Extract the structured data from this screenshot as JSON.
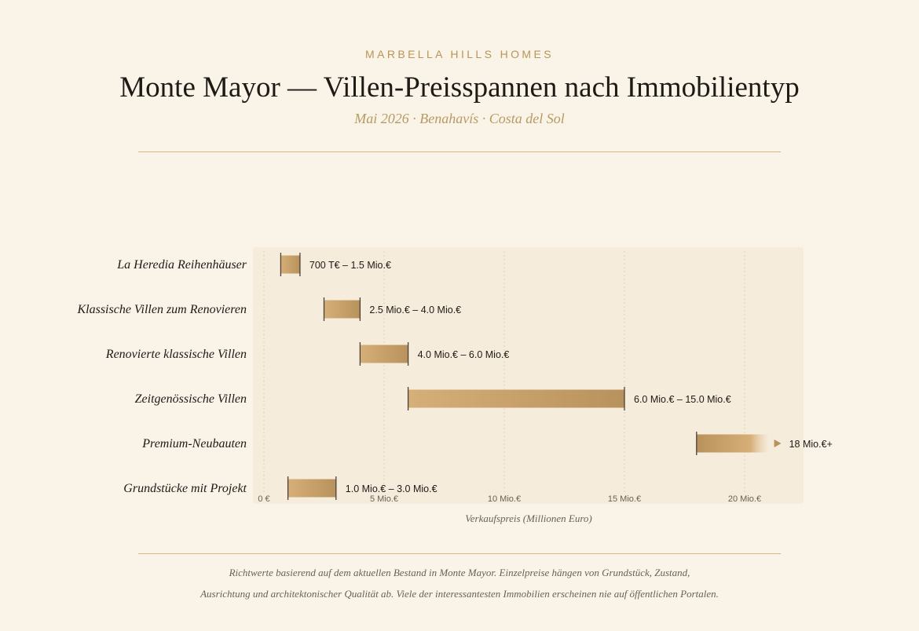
{
  "header": {
    "brand": "MARBELLA HILLS HOMES",
    "title": "Monte Mayor — Villen-Preisspannen nach Immobilientyp",
    "subtitle": "Mai 2026 · Benahavís · Costa del Sol"
  },
  "footer": {
    "line1": "Richtwerte basierend auf dem aktuellen Bestand in Monte Mayor. Einzelpreise hängen von Grundstück, Zustand,",
    "line2": "Ausrichtung und architektonischer Qualität ab. Viele der interessantesten Immobilien erscheinen nie auf öffentlichen Portalen."
  },
  "colors": {
    "background": "#f9f3e8",
    "plot_background": "#f6ecdc",
    "bar_start": "#d6ae78",
    "bar_end": "#b8925c",
    "accent": "#b89558",
    "text": "#1e1a16"
  },
  "chart_data": {
    "type": "range-bar",
    "orientation": "horizontal",
    "xlabel": "Verkaufspreis (Millionen Euro)",
    "ylabel": "",
    "xlim": [
      0,
      22
    ],
    "x_ticks": [
      {
        "value": 0,
        "label": "0 €"
      },
      {
        "value": 5,
        "label": "5 Mio.€"
      },
      {
        "value": 10,
        "label": "10 Mio.€"
      },
      {
        "value": 15,
        "label": "15 Mio.€"
      },
      {
        "value": 20,
        "label": "20 Mio.€"
      }
    ],
    "grid": "vertical dotted",
    "categories": [
      "La Heredia Reihenhäuser",
      "Klassische Villen zum Renovieren",
      "Renovierte klassische Villen",
      "Zeitgenössische Villen",
      "Premium-Neubauten",
      "Grundstücke mit Projekt"
    ],
    "ranges": [
      {
        "min": 0.7,
        "max": 1.5,
        "label": "700 T€ – 1.5 Mio.€",
        "open_ended": false
      },
      {
        "min": 2.5,
        "max": 4.0,
        "label": "2.5 Mio.€ – 4.0 Mio.€",
        "open_ended": false
      },
      {
        "min": 4.0,
        "max": 6.0,
        "label": "4.0 Mio.€ – 6.0 Mio.€",
        "open_ended": false
      },
      {
        "min": 6.0,
        "max": 15.0,
        "label": "6.0 Mio.€ – 15.0 Mio.€",
        "open_ended": false
      },
      {
        "min": 18.0,
        "max": 21.0,
        "label": "18 Mio.€+",
        "open_ended": true
      },
      {
        "min": 1.0,
        "max": 3.0,
        "label": "1.0 Mio.€ – 3.0 Mio.€",
        "open_ended": false
      }
    ]
  }
}
